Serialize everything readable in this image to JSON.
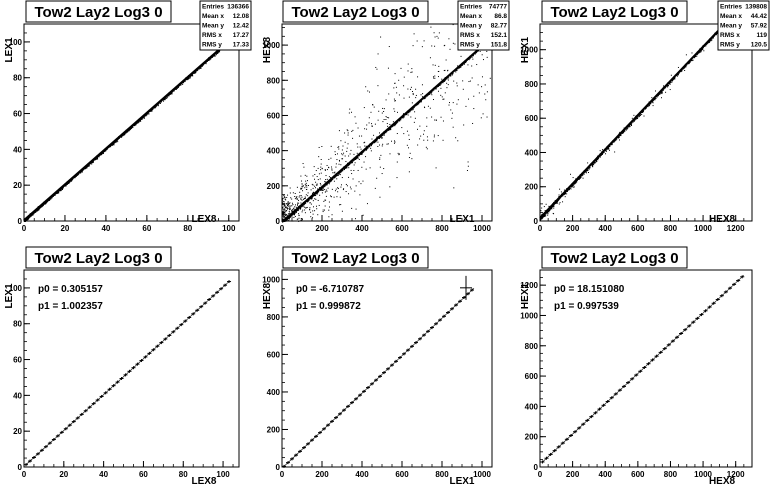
{
  "chart_data": [
    {
      "type": "scatter",
      "title": "Tow2 Lay2 Log3 0",
      "xlabel": "LEX8",
      "ylabel": "LEX1",
      "xlim": [
        0,
        105
      ],
      "ylim": [
        0,
        110
      ],
      "xticks": [
        0,
        20,
        40,
        60,
        80,
        100
      ],
      "yticks": [
        0,
        20,
        40,
        60,
        80,
        100
      ],
      "stats": [
        {
          "label": "Entries",
          "value": "136366"
        },
        {
          "label": "Mean x",
          "value": "12.08"
        },
        {
          "label": "Mean y",
          "value": "12.42"
        },
        {
          "label": "RMS x",
          "value": "17.27"
        },
        {
          "label": "RMS y",
          "value": "17.33"
        }
      ],
      "trend": {
        "slope": 1.0,
        "intercept": 0.3,
        "x_max": 102
      }
    },
    {
      "type": "scatter",
      "title": "Tow2 Lay2 Log3 0",
      "xlabel": "LEX1",
      "ylabel": "HEX8",
      "xlim": [
        0,
        1050
      ],
      "ylim": [
        0,
        1120
      ],
      "xticks": [
        0,
        200,
        400,
        600,
        800,
        1000
      ],
      "yticks": [
        0,
        200,
        400,
        600,
        800,
        1000
      ],
      "stats": [
        {
          "label": "Entries",
          "value": "74777"
        },
        {
          "label": "Mean x",
          "value": "86.8"
        },
        {
          "label": "Mean y",
          "value": "82.77"
        },
        {
          "label": "RMS x",
          "value": "152.1"
        },
        {
          "label": "RMS y",
          "value": "151.8"
        }
      ],
      "trend": {
        "slope": 1.0,
        "intercept": -6.7,
        "x_max": 1040
      }
    },
    {
      "type": "scatter",
      "title": "Tow2 Lay2 Log3 0",
      "xlabel": "HEX8",
      "ylabel": "HEX1",
      "xlim": [
        0,
        1300
      ],
      "ylim": [
        0,
        1150
      ],
      "xticks": [
        0,
        200,
        400,
        600,
        800,
        1000,
        1200
      ],
      "yticks": [
        0,
        200,
        400,
        600,
        800,
        1000
      ],
      "stats": [
        {
          "label": "Entries",
          "value": "139808"
        },
        {
          "label": "Mean x",
          "value": "44.42"
        },
        {
          "label": "Mean y",
          "value": "57.92"
        },
        {
          "label": "RMS x",
          "value": "119"
        },
        {
          "label": "RMS y",
          "value": "120.5"
        }
      ],
      "trend": {
        "slope": 1.0,
        "intercept": 18.2,
        "x_max": 1150
      }
    },
    {
      "type": "line",
      "title": "Tow2 Lay2 Log3 0",
      "xlabel": "LEX8",
      "ylabel": "LEX1",
      "xlim": [
        0,
        108
      ],
      "ylim": [
        0,
        110
      ],
      "xticks": [
        0,
        20,
        40,
        60,
        80,
        100
      ],
      "yticks": [
        0,
        20,
        40,
        60,
        80,
        100
      ],
      "fit": [
        {
          "label": "p0 = 0.305157"
        },
        {
          "label": "p1 = 1.002357"
        }
      ],
      "fit_params": {
        "p0": 0.305157,
        "p1": 1.002357
      },
      "profile": {
        "x_min": 1,
        "x_max": 103,
        "step": 2
      }
    },
    {
      "type": "line",
      "title": "Tow2 Lay2 Log3 0",
      "xlabel": "LEX1",
      "ylabel": "HEX8",
      "xlim": [
        0,
        1050
      ],
      "ylim": [
        0,
        1050
      ],
      "xticks": [
        0,
        200,
        400,
        600,
        800,
        1000
      ],
      "yticks": [
        0,
        200,
        400,
        600,
        800,
        1000
      ],
      "fit": [
        {
          "label": "p0 = -6.710787"
        },
        {
          "label": "p1 = 0.999872"
        }
      ],
      "fit_params": {
        "p0": -6.710787,
        "p1": 0.999872
      },
      "profile": {
        "x_min": 10,
        "x_max": 960,
        "step": 20
      }
    },
    {
      "type": "line",
      "title": "Tow2 Lay2 Log3 0",
      "xlabel": "HEX8",
      "ylabel": "HEX1",
      "xlim": [
        0,
        1300
      ],
      "ylim": [
        0,
        1300
      ],
      "xticks": [
        0,
        200,
        400,
        600,
        800,
        1000,
        1200
      ],
      "yticks": [
        0,
        200,
        400,
        600,
        800,
        1000,
        1200
      ],
      "fit": [
        {
          "label": "p0 = 18.151080"
        },
        {
          "label": "p1 = 0.997539"
        }
      ],
      "fit_params": {
        "p0": 18.15108,
        "p1": 0.997539
      },
      "profile": {
        "x_min": 15,
        "x_max": 1250,
        "step": 25
      }
    }
  ]
}
